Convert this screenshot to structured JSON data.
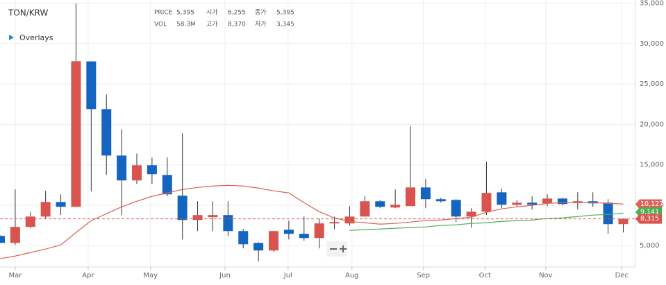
{
  "chart_data": {
    "type": "candlestick",
    "title": "TON/KRW",
    "overlays_label": "Overlays",
    "info": [
      {
        "label": "PRICE",
        "value": "5,395"
      },
      {
        "label": "시가",
        "value": "6,255"
      },
      {
        "label": "종가",
        "value": "5,395"
      },
      {
        "label": "VOL",
        "value": "58.3M"
      },
      {
        "label": "고가",
        "value": "8,370"
      },
      {
        "label": "저가",
        "value": "3,345"
      }
    ],
    "x": [
      0,
      1,
      2,
      3,
      4,
      5,
      6,
      7,
      8,
      9,
      10,
      11,
      12,
      13,
      14,
      15,
      16,
      17,
      18,
      19,
      20,
      21,
      22,
      23,
      24,
      25,
      26,
      27,
      28,
      29,
      30,
      31,
      32,
      33,
      34,
      35,
      36,
      37,
      38,
      39,
      40,
      41
    ],
    "open": [
      6200,
      5340,
      7320,
      8600,
      10400,
      9800,
      27800,
      21900,
      16150,
      13070,
      14950,
      13750,
      11180,
      8170,
      8520,
      8780,
      6800,
      5340,
      4400,
      6970,
      6460,
      5940,
      7750,
      7750,
      8600,
      10490,
      9720,
      9890,
      12200,
      10750,
      10660,
      8600,
      9200,
      11600,
      10060,
      10320,
      10230,
      10830,
      10320,
      10490,
      10320,
      7660
    ],
    "high": [
      6300,
      11950,
      9120,
      11780,
      11350,
      35000,
      27820,
      23700,
      19400,
      16400,
      15900,
      15900,
      18900,
      10490,
      10490,
      10490,
      7060,
      5430,
      6800,
      8090,
      8600,
      8350,
      8600,
      9890,
      11100,
      10660,
      11950,
      19760,
      13240,
      10920,
      10750,
      9630,
      15380,
      12040,
      10660,
      11100,
      11350,
      10920,
      11600,
      11600,
      10750,
      8350
    ],
    "low": [
      5300,
      5090,
      7150,
      8350,
      8780,
      9800,
      11700,
      13750,
      8780,
      12640,
      12640,
      11100,
      5770,
      6800,
      6800,
      6200,
      4660,
      3030,
      4230,
      5770,
      5600,
      4660,
      7060,
      7490,
      8600,
      9630,
      9630,
      9890,
      9630,
      10320,
      7920,
      7230,
      8780,
      9630,
      9800,
      9460,
      9890,
      9980,
      9460,
      9800,
      6460,
      6630
    ],
    "close": [
      5340,
      7320,
      8600,
      10400,
      9800,
      27820,
      21900,
      16150,
      13070,
      14950,
      13840,
      11350,
      8170,
      8780,
      8780,
      6800,
      5170,
      4400,
      6800,
      6460,
      5940,
      7750,
      7920,
      8600,
      10490,
      9800,
      10060,
      12200,
      10750,
      10490,
      8600,
      9200,
      11520,
      10060,
      10320,
      10060,
      10830,
      10150,
      10490,
      10230,
      7660,
      8315
    ],
    "up_color": "#d9534f",
    "down_color": "#1565c0",
    "lines": [
      {
        "color": "#e06055",
        "values": [
          3370,
          3710,
          4140,
          4570,
          5090,
          6630,
          8090,
          8950,
          9800,
          10490,
          11100,
          11520,
          11950,
          12200,
          12380,
          12460,
          12380,
          12120,
          11780,
          11520,
          10320,
          9200,
          8430,
          8000,
          7830,
          7660,
          7750,
          7920,
          8090,
          8170,
          8350,
          8520,
          9120,
          9550,
          9800,
          9980,
          10230,
          10320,
          10320,
          10320,
          10230,
          10150
        ]
      },
      {
        "color": "#4caf50",
        "values": [
          null,
          null,
          null,
          null,
          null,
          null,
          null,
          null,
          null,
          null,
          null,
          null,
          null,
          null,
          null,
          null,
          null,
          null,
          null,
          null,
          null,
          null,
          null,
          6890,
          6970,
          7060,
          7150,
          7230,
          7320,
          7490,
          7570,
          7750,
          7830,
          8000,
          8090,
          8170,
          8350,
          8430,
          8600,
          8780,
          8860,
          9030
        ]
      }
    ],
    "price_tags": [
      {
        "value": 10127,
        "label": "10,127",
        "color": "#e06055",
        "dashed": false
      },
      {
        "value": 9141,
        "label": "9,141",
        "color": "#4caf50",
        "dashed": false
      },
      {
        "value": 8315,
        "label": "8,315",
        "color": "#d9534f",
        "dashed": true
      }
    ],
    "xlim": [
      0,
      41.8
    ],
    "xticks": [
      {
        "value": 1.0,
        "label": "Mar"
      },
      {
        "value": 5.8,
        "label": "Apr"
      },
      {
        "value": 9.9,
        "label": "May"
      },
      {
        "value": 14.8,
        "label": "Jun"
      },
      {
        "value": 18.95,
        "label": "Jul"
      },
      {
        "value": 23.15,
        "label": "Aug"
      },
      {
        "value": 27.85,
        "label": "Sep"
      },
      {
        "value": 31.9,
        "label": "Oct"
      },
      {
        "value": 35.9,
        "label": "Nov"
      },
      {
        "value": 40.9,
        "label": "Dec"
      }
    ],
    "ylim": [
      1500,
      35400
    ],
    "yticks": [
      {
        "value": 5000,
        "label": "5,000"
      },
      {
        "value": 10000,
        "label": "10,000"
      },
      {
        "value": 15000,
        "label": "15,000"
      },
      {
        "value": 20000,
        "label": "20,000"
      },
      {
        "value": 25000,
        "label": "25,000"
      },
      {
        "value": 30000,
        "label": "30,000"
      },
      {
        "value": 35000,
        "label": "35,000"
      }
    ],
    "grid": true
  }
}
